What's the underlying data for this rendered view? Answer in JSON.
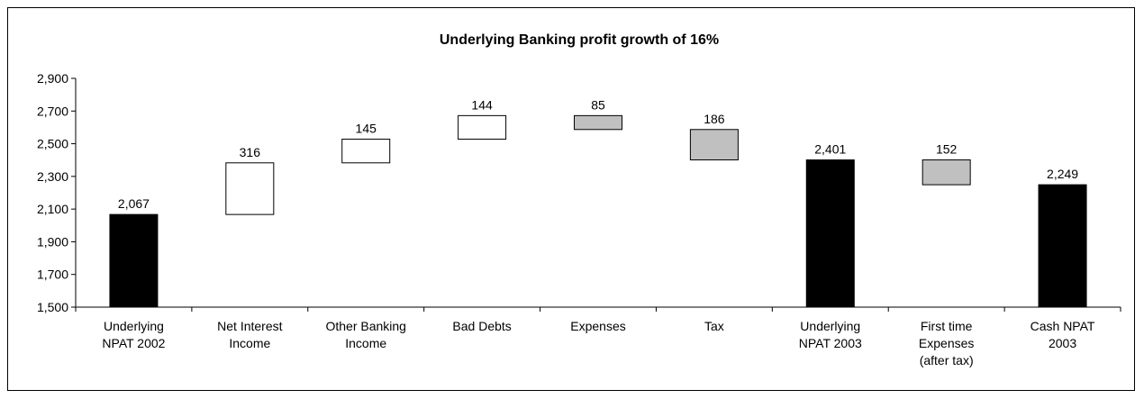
{
  "chart_data": {
    "type": "bar",
    "subtype": "waterfall",
    "title": "Underlying Banking profit growth of 16%",
    "xlabel": "",
    "ylabel": "",
    "ylim": [
      1500,
      2900
    ],
    "yticks": [
      1500,
      1700,
      1900,
      2100,
      2300,
      2500,
      2700,
      2900
    ],
    "ytick_labels": [
      "1,500",
      "1,700",
      "1,900",
      "2,100",
      "2,300",
      "2,500",
      "2,700",
      "2,900"
    ],
    "grid": false,
    "legend": "none",
    "colors": {
      "total": "#000000",
      "increase": "#ffffff",
      "decrease": "#c0c0c0",
      "outline": "#000000"
    },
    "bars": [
      {
        "category": [
          "Underlying",
          "NPAT 2002"
        ],
        "kind": "total",
        "start": 1500,
        "end": 2067,
        "label": "2,067"
      },
      {
        "category": [
          "Net Interest",
          "Income"
        ],
        "kind": "increase",
        "start": 2067,
        "end": 2383,
        "label": "316"
      },
      {
        "category": [
          "Other Banking",
          "Income"
        ],
        "kind": "increase",
        "start": 2383,
        "end": 2528,
        "label": "145"
      },
      {
        "category": [
          "Bad Debts"
        ],
        "kind": "increase",
        "start": 2528,
        "end": 2672,
        "label": "144"
      },
      {
        "category": [
          "Expenses"
        ],
        "kind": "decrease",
        "start": 2672,
        "end": 2587,
        "label": "85"
      },
      {
        "category": [
          "Tax"
        ],
        "kind": "decrease",
        "start": 2587,
        "end": 2401,
        "label": "186"
      },
      {
        "category": [
          "Underlying",
          "NPAT 2003"
        ],
        "kind": "total",
        "start": 1500,
        "end": 2401,
        "label": "2,401"
      },
      {
        "category": [
          "First time",
          "Expenses",
          "(after tax)"
        ],
        "kind": "decrease",
        "start": 2401,
        "end": 2249,
        "label": "152"
      },
      {
        "category": [
          "Cash NPAT",
          "2003"
        ],
        "kind": "total",
        "start": 1500,
        "end": 2249,
        "label": "2,249"
      }
    ]
  }
}
